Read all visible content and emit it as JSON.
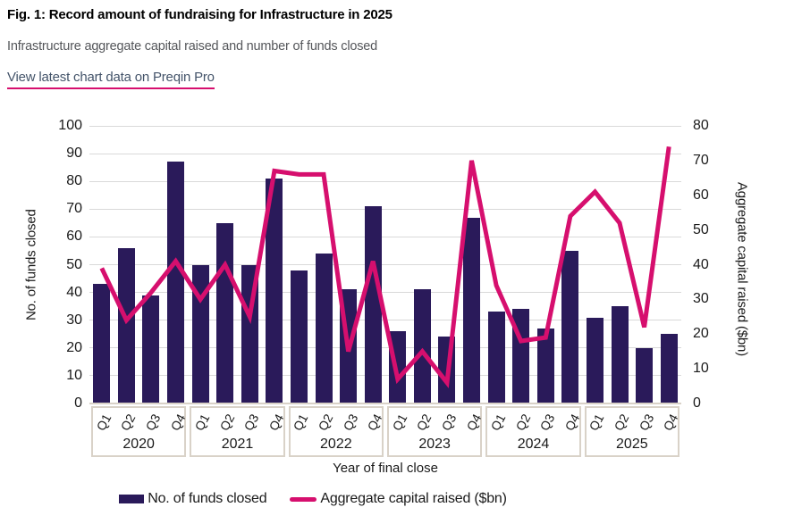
{
  "header": {
    "title": "Fig. 1: Record amount of fundraising for Infrastructure in 2025",
    "subtitle": "Infrastructure aggregate capital raised and number of funds closed",
    "link_label": "View latest chart data on Preqin Pro"
  },
  "chart_data": {
    "type": "combo",
    "year_groups": [
      "2020",
      "2021",
      "2022",
      "2023",
      "2024",
      "2025"
    ],
    "quarter_labels": [
      "Q1",
      "Q2",
      "Q3",
      "Q4"
    ],
    "categories": [
      "Q1 2020",
      "Q2 2020",
      "Q3 2020",
      "Q4 2020",
      "Q1 2021",
      "Q2 2021",
      "Q3 2021",
      "Q4 2021",
      "Q1 2022",
      "Q2 2022",
      "Q3 2022",
      "Q4 2022",
      "Q1 2023",
      "Q2 2023",
      "Q3 2023",
      "Q4 2023",
      "Q1 2024",
      "Q2 2024",
      "Q3 2024",
      "Q4 2024",
      "Q1 2025",
      "Q2 2025",
      "Q3 2025",
      "Q4 2025"
    ],
    "series": [
      {
        "name": "No. of funds closed",
        "type": "bar",
        "axis": "left",
        "color": "#2a1a5a",
        "values": [
          43,
          56,
          39,
          87,
          50,
          65,
          50,
          81,
          48,
          54,
          41,
          71,
          26,
          41,
          24,
          67,
          33,
          34,
          27,
          55,
          31,
          35,
          20,
          25
        ]
      },
      {
        "name": "Aggregate capital raised ($bn)",
        "type": "line",
        "axis": "right",
        "color": "#d60f6e",
        "values": [
          39,
          24,
          32,
          41,
          30,
          40,
          25,
          67,
          66,
          66,
          15,
          41,
          7,
          15,
          6,
          70,
          34,
          18,
          19,
          54,
          61,
          52,
          22,
          74
        ]
      }
    ],
    "xlabel": "Year of final close",
    "ylabel_left": "No. of funds closed",
    "ylabel_right": "Aggregate capital raised ($bn)",
    "ylim_left": [
      0,
      100
    ],
    "ytick_step_left": 10,
    "ylim_right": [
      0,
      80
    ],
    "ytick_step_right": 10,
    "grid": "horizontal",
    "legend_position": "bottom"
  },
  "colors": {
    "bar": "#2a1a5a",
    "line": "#d60f6e",
    "grid": "#d9d9d9",
    "axis_box_border": "#d9d2c8",
    "title_text": "#000000",
    "subtitle_text": "#54565a",
    "link_text": "#44546a",
    "link_underline": "#d60f6e"
  }
}
